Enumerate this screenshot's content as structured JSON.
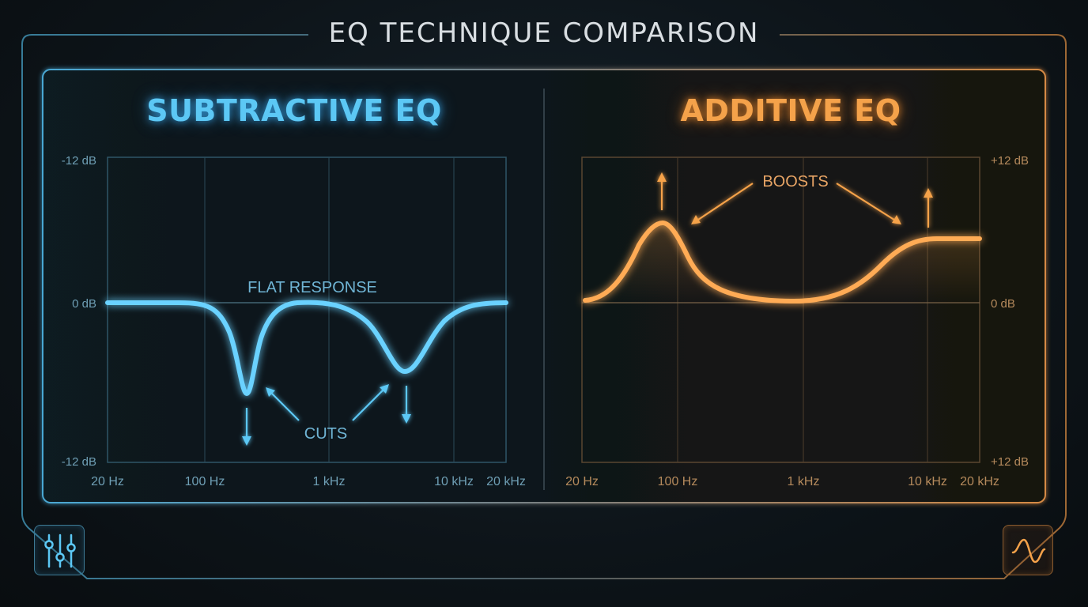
{
  "title": "EQ TECHNIQUE COMPARISON",
  "panels": {
    "subtractive": {
      "title": "SUBTRACTIVE EQ",
      "y_top": "-12 dB",
      "y_mid": "0 dB",
      "y_bottom": "-12 dB",
      "x_ticks": [
        "20 Hz",
        "100 Hz",
        "1 kHz",
        "10 kHz",
        "20 kHz"
      ],
      "flat_label": "FLAT RESPONSE",
      "annotation": "CUTS",
      "color": "#5cc8f5"
    },
    "additive": {
      "title": "ADDITIVE EQ",
      "y_top": "+12 dB",
      "y_mid": "0 dB",
      "y_bottom": "+12 dB",
      "x_ticks": [
        "20 Hz",
        "100 Hz",
        "1 kHz",
        "10 kHz",
        "20 kHz"
      ],
      "annotation": "BOOSTS",
      "color": "#f5a24a"
    }
  },
  "icons": {
    "left": "mixer-sliders-icon",
    "right": "sine-wave-icon"
  }
}
